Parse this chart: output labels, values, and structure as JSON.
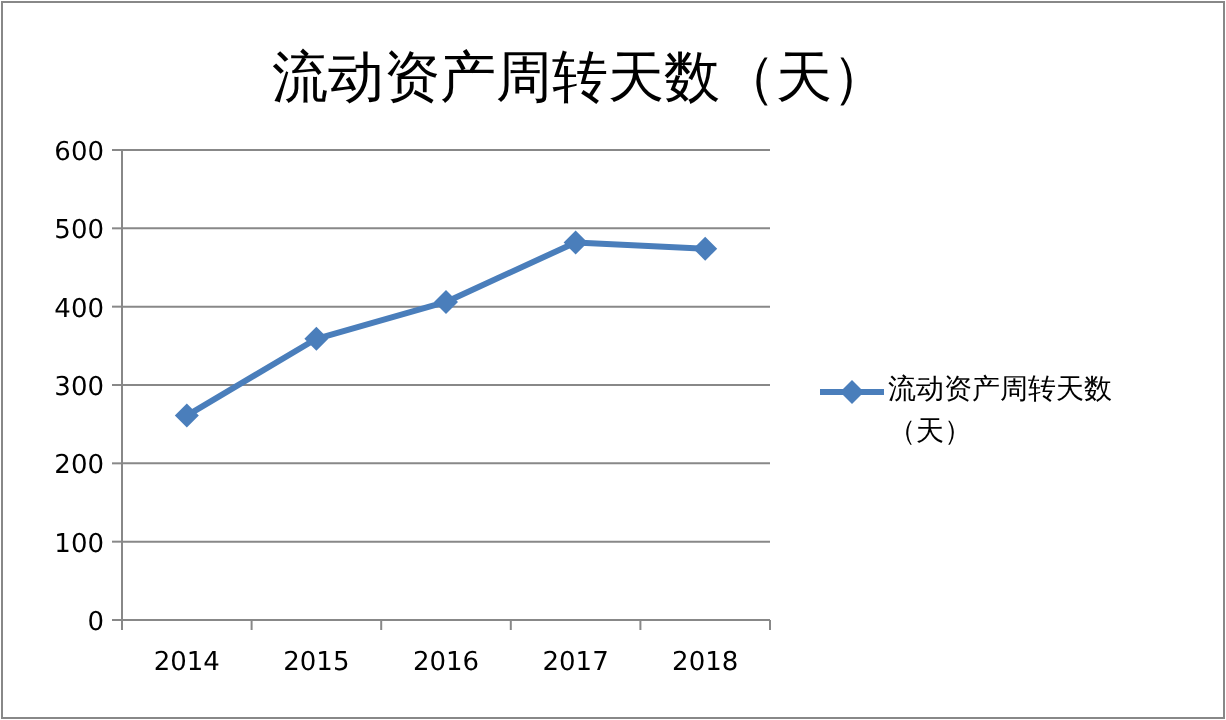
{
  "chart_data": {
    "type": "line",
    "title": "流动资产周转天数（天）",
    "categories": [
      "2014",
      "2015",
      "2016",
      "2017",
      "2018"
    ],
    "series": [
      {
        "name": "流动资产周转天数（天）",
        "color": "#4a7ebb",
        "values": [
          261,
          359,
          406,
          482,
          474
        ]
      }
    ],
    "ylim": [
      0,
      600
    ],
    "yticks": [
      0,
      100,
      200,
      300,
      400,
      500,
      600
    ],
    "grid": "y",
    "legend": "right",
    "marker": "diamond",
    "line_style": "solid"
  }
}
